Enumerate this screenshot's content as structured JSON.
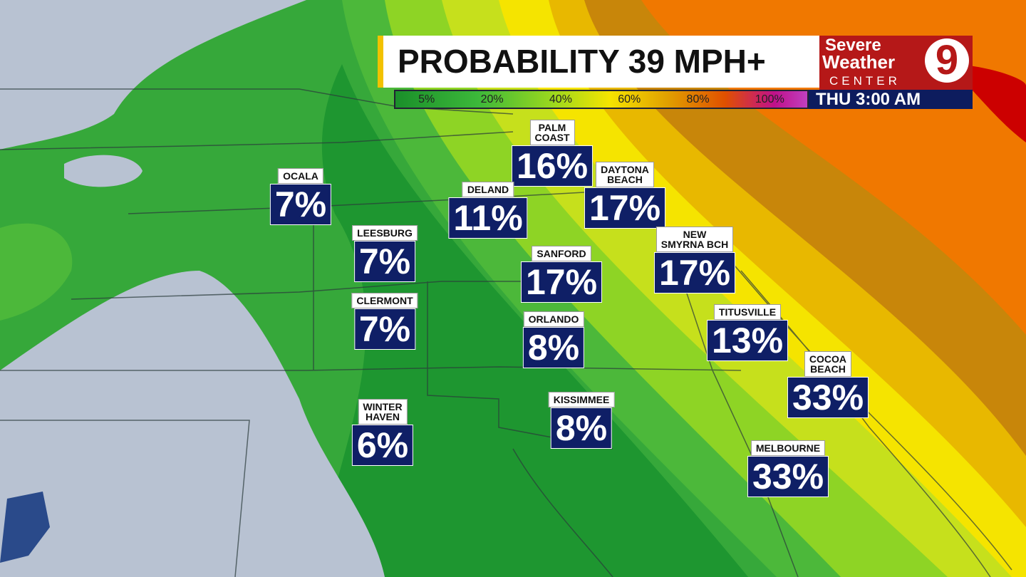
{
  "header": {
    "title": "PROBABILITY 39 MPH+",
    "time": "THU 3:00 AM"
  },
  "legend": [
    "5%",
    "20%",
    "40%",
    "60%",
    "80%",
    "100%"
  ],
  "logo": {
    "line1": "Severe",
    "line2": "Weather",
    "line3": "CENTER",
    "channel": "9"
  },
  "cities": [
    {
      "name": [
        "PALM",
        "COAST"
      ],
      "value": "16%"
    },
    {
      "name": [
        "DAYTONA",
        "BEACH"
      ],
      "value": "17%"
    },
    {
      "name": [
        "OCALA"
      ],
      "value": "7%"
    },
    {
      "name": [
        "DELAND"
      ],
      "value": "11%"
    },
    {
      "name": [
        "LEESBURG"
      ],
      "value": "7%"
    },
    {
      "name": [
        "SANFORD"
      ],
      "value": "17%"
    },
    {
      "name": [
        "NEW",
        "SMYRNA BCH"
      ],
      "value": "17%"
    },
    {
      "name": [
        "CLERMONT"
      ],
      "value": "7%"
    },
    {
      "name": [
        "ORLANDO"
      ],
      "value": "8%"
    },
    {
      "name": [
        "TITUSVILLE"
      ],
      "value": "13%"
    },
    {
      "name": [
        "COCOA",
        "BEACH"
      ],
      "value": "33%"
    },
    {
      "name": [
        "WINTER",
        "HAVEN"
      ],
      "value": "6%"
    },
    {
      "name": [
        "KISSIMMEE"
      ],
      "value": "8%"
    },
    {
      "name": [
        "MELBOURNE"
      ],
      "value": "33%"
    }
  ]
}
